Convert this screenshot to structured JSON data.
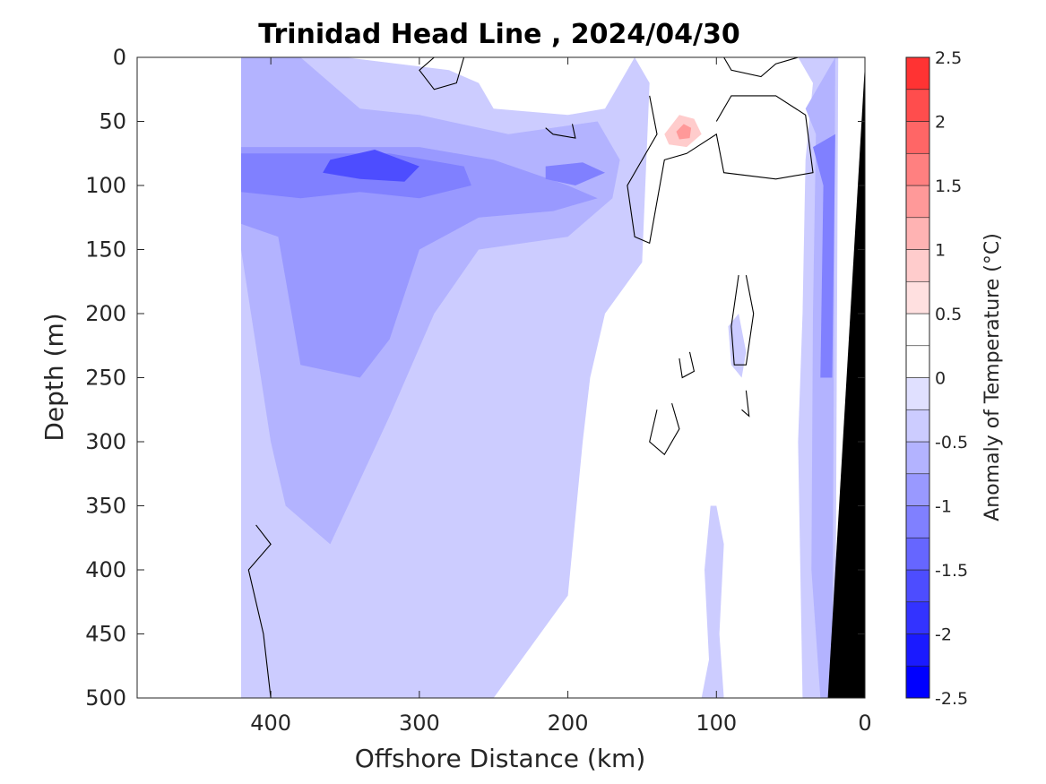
{
  "chart_data": {
    "type": "heatmap",
    "title": "Trinidad Head Line , 2024/04/30",
    "xlabel": "Offshore Distance (km)",
    "ylabel": "Depth (m)",
    "xlim": [
      490,
      0
    ],
    "ylim": [
      0,
      500
    ],
    "x_reversed": true,
    "y_reversed": true,
    "xticks": [
      400,
      300,
      200,
      100,
      0
    ],
    "yticks": [
      0,
      50,
      100,
      150,
      200,
      250,
      300,
      350,
      400,
      450,
      500
    ],
    "data_x_min": 420,
    "colorbar": {
      "label": "Anomaly of Temperature (°C)",
      "range": [
        -2.5,
        2.5
      ],
      "ticks": [
        "2.5",
        "2",
        "1.5",
        "1",
        "0.5",
        "0",
        "-0.5",
        "-1",
        "-1.5",
        "-2",
        "-2.5"
      ],
      "levels": [
        -2.5,
        -2.25,
        -2,
        -1.75,
        -1.5,
        -1.25,
        -1,
        -0.75,
        -0.5,
        -0.25,
        0,
        0.25,
        0.5,
        0.75,
        1,
        1.25,
        1.5,
        1.75,
        2,
        2.25,
        2.5
      ],
      "colors": [
        "#0000ff",
        "#1a1aff",
        "#3333ff",
        "#4d4dff",
        "#6666ff",
        "#8080ff",
        "#9999ff",
        "#b3b3ff",
        "#ccccff",
        "#e0e0ff",
        "#ffffff",
        "#ffffff",
        "#ffe0e0",
        "#ffcccc",
        "#ffb3b3",
        "#ff9999",
        "#ff8080",
        "#ff6666",
        "#ff4d4d",
        "#ff3333",
        "#ff1a1a"
      ]
    },
    "bathymetry": {
      "color": "#000000",
      "points": [
        [
          0,
          5
        ],
        [
          0,
          500
        ],
        [
          25,
          500
        ]
      ]
    },
    "regions": [
      {
        "name": "offshore-weak-cool",
        "value": -0.3,
        "points": [
          [
            420,
            0
          ],
          [
            350,
            0
          ],
          [
            280,
            10
          ],
          [
            260,
            20
          ],
          [
            250,
            40
          ],
          [
            200,
            45
          ],
          [
            175,
            40
          ],
          [
            165,
            20
          ],
          [
            160,
            10
          ],
          [
            155,
            0
          ],
          [
            145,
            20
          ],
          [
            150,
            160
          ],
          [
            175,
            200
          ],
          [
            185,
            250
          ],
          [
            190,
            300
          ],
          [
            200,
            420
          ],
          [
            250,
            500
          ],
          [
            420,
            500
          ]
        ]
      },
      {
        "name": "near-coast-weak-cool",
        "value": -0.3,
        "points": [
          [
            100,
            350
          ],
          [
            95,
            380
          ],
          [
            98,
            450
          ],
          [
            95,
            500
          ],
          [
            110,
            500
          ],
          [
            105,
            470
          ],
          [
            108,
            400
          ],
          [
            104,
            350
          ]
        ]
      },
      {
        "name": "midline-weak-cool",
        "value": -0.3,
        "points": [
          [
            85,
            200
          ],
          [
            80,
            230
          ],
          [
            83,
            250
          ],
          [
            90,
            240
          ],
          [
            92,
            210
          ]
        ]
      },
      {
        "name": "coastal-weak-cool",
        "value": -0.3,
        "points": [
          [
            45,
            0
          ],
          [
            35,
            20
          ],
          [
            40,
            80
          ],
          [
            42,
            200
          ],
          [
            45,
            300
          ],
          [
            42,
            500
          ],
          [
            20,
            500
          ],
          [
            18,
            0
          ]
        ]
      },
      {
        "name": "upper-cool-band",
        "value": -0.6,
        "points": [
          [
            420,
            0
          ],
          [
            380,
            0
          ],
          [
            360,
            20
          ],
          [
            340,
            40
          ],
          [
            300,
            45
          ],
          [
            240,
            60
          ],
          [
            180,
            50
          ],
          [
            165,
            80
          ],
          [
            170,
            110
          ],
          [
            200,
            140
          ],
          [
            260,
            150
          ],
          [
            290,
            200
          ],
          [
            320,
            280
          ],
          [
            340,
            330
          ],
          [
            360,
            380
          ],
          [
            390,
            350
          ],
          [
            400,
            300
          ],
          [
            420,
            150
          ]
        ]
      },
      {
        "name": "coastal-cool-band",
        "value": -0.6,
        "points": [
          [
            40,
            40
          ],
          [
            33,
            60
          ],
          [
            35,
            200
          ],
          [
            36,
            400
          ],
          [
            30,
            500
          ],
          [
            22,
            500
          ],
          [
            20,
            0
          ]
        ]
      },
      {
        "name": "core-cool",
        "value": -0.9,
        "points": [
          [
            420,
            70
          ],
          [
            370,
            70
          ],
          [
            300,
            70
          ],
          [
            250,
            80
          ],
          [
            200,
            100
          ],
          [
            180,
            110
          ],
          [
            210,
            120
          ],
          [
            260,
            125
          ],
          [
            300,
            150
          ],
          [
            320,
            220
          ],
          [
            340,
            250
          ],
          [
            380,
            240
          ],
          [
            395,
            140
          ],
          [
            420,
            130
          ]
        ]
      },
      {
        "name": "coastal-cool-core",
        "value": -1.1,
        "points": [
          [
            35,
            70
          ],
          [
            28,
            100
          ],
          [
            30,
            250
          ],
          [
            22,
            250
          ],
          [
            20,
            60
          ]
        ]
      },
      {
        "name": "deep-cool-core",
        "value": -1.1,
        "points": [
          [
            420,
            75
          ],
          [
            360,
            75
          ],
          [
            320,
            75
          ],
          [
            270,
            85
          ],
          [
            265,
            100
          ],
          [
            300,
            110
          ],
          [
            340,
            105
          ],
          [
            380,
            110
          ],
          [
            420,
            105
          ]
        ]
      },
      {
        "name": "strongest-cool-core",
        "value": -1.6,
        "points": [
          [
            360,
            80
          ],
          [
            330,
            72
          ],
          [
            300,
            85
          ],
          [
            310,
            97
          ],
          [
            340,
            95
          ],
          [
            365,
            90
          ]
        ]
      },
      {
        "name": "secondary-cool-core",
        "value": -1.1,
        "points": [
          [
            215,
            85
          ],
          [
            190,
            82
          ],
          [
            175,
            90
          ],
          [
            195,
            100
          ],
          [
            215,
            95
          ]
        ]
      },
      {
        "name": "upper-warm-lobe",
        "value": 0.4,
        "points": [
          [
            145,
            55
          ],
          [
            130,
            25
          ],
          [
            115,
            25
          ],
          [
            100,
            55
          ],
          [
            60,
            30
          ],
          [
            40,
            45
          ],
          [
            60,
            75
          ],
          [
            100,
            65
          ],
          [
            118,
            80
          ],
          [
            140,
            72
          ]
        ]
      },
      {
        "name": "upper-warm-core",
        "value": 0.8,
        "points": [
          [
            135,
            60
          ],
          [
            125,
            45
          ],
          [
            115,
            48
          ],
          [
            110,
            60
          ],
          [
            120,
            70
          ],
          [
            132,
            68
          ]
        ]
      },
      {
        "name": "upper-warm-peak",
        "value": 1.3,
        "points": [
          [
            127,
            58
          ],
          [
            122,
            52
          ],
          [
            117,
            55
          ],
          [
            118,
            63
          ],
          [
            125,
            64
          ]
        ]
      }
    ],
    "zero_contours": [
      [
        [
          145,
          30
        ],
        [
          140,
          60
        ],
        [
          150,
          80
        ],
        [
          160,
          100
        ],
        [
          155,
          140
        ],
        [
          145,
          145
        ],
        [
          135,
          80
        ],
        [
          120,
          75
        ],
        [
          100,
          60
        ],
        [
          95,
          90
        ],
        [
          60,
          95
        ],
        [
          35,
          90
        ],
        [
          40,
          45
        ],
        [
          60,
          30
        ],
        [
          90,
          30
        ],
        [
          100,
          50
        ]
      ],
      [
        [
          95,
          0
        ],
        [
          90,
          10
        ],
        [
          70,
          15
        ],
        [
          60,
          5
        ],
        [
          45,
          0
        ]
      ],
      [
        [
          290,
          0
        ],
        [
          300,
          10
        ],
        [
          290,
          25
        ],
        [
          275,
          20
        ],
        [
          270,
          0
        ]
      ],
      [
        [
          215,
          55
        ],
        [
          210,
          60
        ],
        [
          195,
          63
        ],
        [
          197,
          52
        ]
      ],
      [
        [
          80,
          170
        ],
        [
          75,
          200
        ],
        [
          80,
          240
        ],
        [
          88,
          240
        ],
        [
          90,
          210
        ],
        [
          85,
          170
        ]
      ],
      [
        [
          130,
          270
        ],
        [
          125,
          290
        ],
        [
          135,
          310
        ],
        [
          145,
          300
        ],
        [
          140,
          275
        ]
      ],
      [
        [
          118,
          230
        ],
        [
          115,
          245
        ],
        [
          123,
          250
        ],
        [
          125,
          235
        ]
      ],
      [
        [
          80,
          260
        ],
        [
          78,
          280
        ],
        [
          83,
          275
        ]
      ],
      [
        [
          410,
          365
        ],
        [
          400,
          380
        ],
        [
          415,
          400
        ],
        [
          405,
          450
        ],
        [
          400,
          500
        ]
      ]
    ]
  }
}
